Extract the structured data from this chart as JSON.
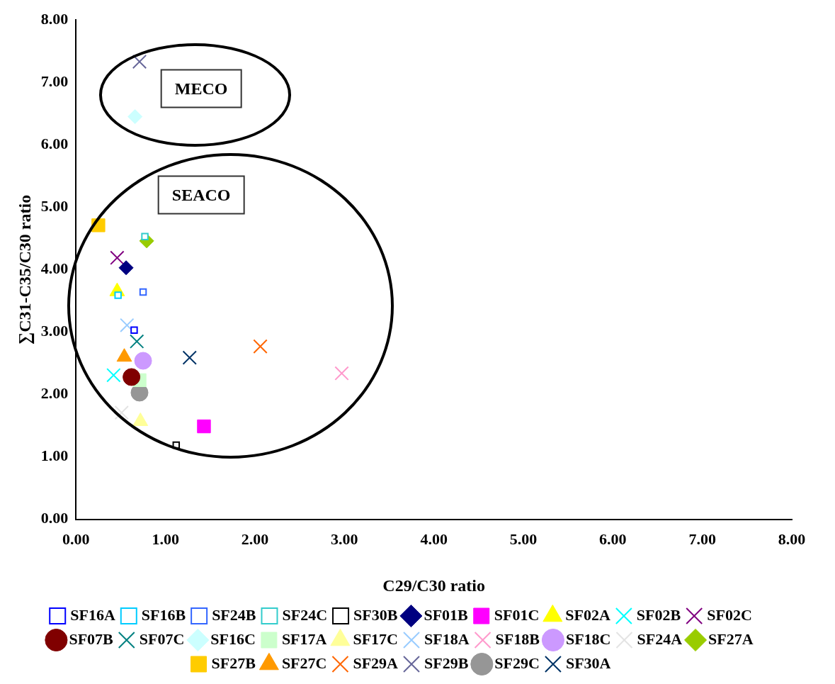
{
  "chart_data": {
    "type": "scatter",
    "xlabel": "C29/C30 ratio",
    "ylabel": "∑C31-C35/C30 ratio",
    "xlim": [
      0,
      8
    ],
    "ylim": [
      0,
      8
    ],
    "xticks": [
      {
        "value": 0,
        "label": "0.00"
      },
      {
        "value": 1,
        "label": "1.00"
      },
      {
        "value": 2,
        "label": "2.00"
      },
      {
        "value": 3,
        "label": "3.00"
      },
      {
        "value": 4,
        "label": "4.00"
      },
      {
        "value": 5,
        "label": "5.00"
      },
      {
        "value": 6,
        "label": "6.00"
      },
      {
        "value": 7,
        "label": "7.00"
      },
      {
        "value": 8,
        "label": "8.00"
      }
    ],
    "yticks": [
      {
        "value": 0,
        "label": "0.00"
      },
      {
        "value": 1,
        "label": "1.00"
      },
      {
        "value": 2,
        "label": "2.00"
      },
      {
        "value": 3,
        "label": "3.00"
      },
      {
        "value": 4,
        "label": "4.00"
      },
      {
        "value": 5,
        "label": "5.00"
      },
      {
        "value": 6,
        "label": "6.00"
      },
      {
        "value": 7,
        "label": "7.00"
      },
      {
        "value": 8,
        "label": "8.00"
      }
    ],
    "grid": false,
    "legend": "bottom",
    "annotations": [
      "MECO",
      "SEACO"
    ],
    "series": [
      {
        "name": "SF01B",
        "color": "#000080",
        "marker": "diamond",
        "x": [
          0.56
        ],
        "values": [
          4.03
        ]
      },
      {
        "name": "SF01C",
        "color": "#ff00ff",
        "marker": "square",
        "x": [
          1.43
        ],
        "values": [
          1.49
        ]
      },
      {
        "name": "SF02A",
        "color": "#ffff00",
        "marker": "triangle",
        "x": [
          0.46
        ],
        "values": [
          3.65
        ]
      },
      {
        "name": "SF02B",
        "color": "#00ffff",
        "marker": "cross",
        "x": [
          0.42
        ],
        "values": [
          2.31
        ]
      },
      {
        "name": "SF02C",
        "color": "#800080",
        "marker": "cross",
        "x": [
          0.46
        ],
        "values": [
          4.19
        ]
      },
      {
        "name": "SF07B",
        "color": "#800000",
        "marker": "circle",
        "x": [
          0.62
        ],
        "values": [
          2.28
        ]
      },
      {
        "name": "SF07C",
        "color": "#008080",
        "marker": "cross",
        "x": [
          0.68
        ],
        "values": [
          2.85
        ]
      },
      {
        "name": "SF16A",
        "color": "#0000ff",
        "marker": "square",
        "x": [
          0.65
        ],
        "values": [
          3.03
        ]
      },
      {
        "name": "SF16B",
        "color": "#00ccff",
        "marker": "square",
        "x": [
          0.47
        ],
        "values": [
          3.59
        ]
      },
      {
        "name": "SF16C",
        "color": "#ccffff",
        "marker": "diamond",
        "x": [
          0.66
        ],
        "values": [
          6.45
        ]
      },
      {
        "name": "SF17A",
        "color": "#ccffcc",
        "marker": "square",
        "x": [
          0.71
        ],
        "values": [
          2.23
        ]
      },
      {
        "name": "SF17C",
        "color": "#ffff99",
        "marker": "triangle",
        "x": [
          0.72
        ],
        "values": [
          1.57
        ]
      },
      {
        "name": "SF18A",
        "color": "#99ccff",
        "marker": "cross",
        "x": [
          0.57
        ],
        "values": [
          3.11
        ]
      },
      {
        "name": "SF18B",
        "color": "#ff99cc",
        "marker": "cross",
        "x": [
          2.97
        ],
        "values": [
          2.34
        ]
      },
      {
        "name": "SF18C",
        "color": "#cc99ff",
        "marker": "circle",
        "x": [
          0.75
        ],
        "values": [
          2.54
        ]
      },
      {
        "name": "SF24A",
        "color": "#e3e3e3",
        "marker": "cross",
        "x": [
          0.51
        ],
        "values": [
          1.71
        ]
      },
      {
        "name": "SF24B",
        "color": "#3366ff",
        "marker": "square",
        "x": [
          0.75
        ],
        "values": [
          3.64
        ]
      },
      {
        "name": "SF24C",
        "color": "#33cccc",
        "marker": "square",
        "x": [
          0.77
        ],
        "values": [
          4.53
        ]
      },
      {
        "name": "SF27A",
        "color": "#99cc00",
        "marker": "diamond",
        "x": [
          0.79
        ],
        "values": [
          4.46
        ]
      },
      {
        "name": "SF27B",
        "color": "#ffcc00",
        "marker": "square",
        "x": [
          0.25
        ],
        "values": [
          4.71
        ]
      },
      {
        "name": "SF27C",
        "color": "#ff9900",
        "marker": "triangle",
        "x": [
          0.54
        ],
        "values": [
          2.6
        ]
      },
      {
        "name": "SF29A",
        "color": "#ff6600",
        "marker": "cross",
        "x": [
          2.06
        ],
        "values": [
          2.77
        ]
      },
      {
        "name": "SF29B",
        "color": "#666699",
        "marker": "cross",
        "x": [
          0.71
        ],
        "values": [
          7.33
        ]
      },
      {
        "name": "SF29C",
        "color": "#969696",
        "marker": "circle",
        "x": [
          0.71
        ],
        "values": [
          2.03
        ]
      },
      {
        "name": "SF30A",
        "color": "#003366",
        "marker": "cross",
        "x": [
          1.27
        ],
        "values": [
          2.59
        ]
      },
      {
        "name": "SF30B",
        "color": "#000000",
        "marker": "square",
        "x": [
          1.12
        ],
        "values": [
          1.19
        ]
      }
    ]
  }
}
